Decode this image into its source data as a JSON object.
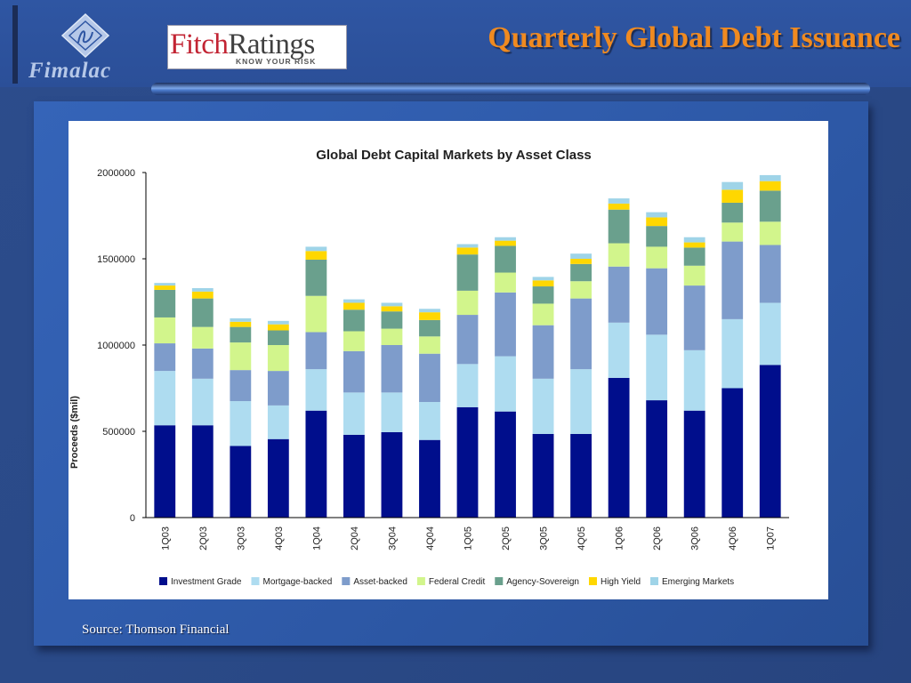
{
  "header": {
    "org_logo_text": "Fimalac",
    "fitch_logo": {
      "word1": "Fitch",
      "word2": "Ratings",
      "tagline": "KNOW YOUR RISK"
    },
    "title": "Quarterly Global Debt Issuance"
  },
  "footer": {
    "source": "Source: Thomson Financial"
  },
  "colors": {
    "title": "#f08a20",
    "investment_grade": "#000e8c",
    "mortgage_backed": "#aedcf0",
    "asset_backed": "#7e9ccb",
    "federal_credit": "#d2f58c",
    "agency_sovereign": "#6aa08d",
    "high_yield": "#ffd700",
    "emerging_markets": "#9fd4e8"
  },
  "chart_data": {
    "type": "bar",
    "stacked": true,
    "title": "Global Debt Capital Markets by Asset Class",
    "xlabel": "",
    "ylabel": "Proceeds ($mil)",
    "ylim": [
      0,
      2000000
    ],
    "yticks": [
      0,
      500000,
      1000000,
      1500000,
      2000000
    ],
    "ytick_labels": [
      "0",
      "500000",
      "1000000",
      "1500000",
      "2000000"
    ],
    "grid": false,
    "legend_position": "bottom",
    "categories": [
      "1Q03",
      "2Q03",
      "3Q03",
      "4Q03",
      "1Q04",
      "2Q04",
      "3Q04",
      "4Q04",
      "1Q05",
      "2Q05",
      "3Q05",
      "4Q05",
      "1Q06",
      "2Q06",
      "3Q06",
      "4Q06",
      "1Q07"
    ],
    "series": [
      {
        "name": "Investment Grade",
        "color": "#000e8c",
        "values": [
          535000,
          535000,
          415000,
          455000,
          620000,
          480000,
          495000,
          450000,
          640000,
          615000,
          485000,
          485000,
          810000,
          680000,
          620000,
          750000,
          885000
        ]
      },
      {
        "name": "Mortgage-backed",
        "color": "#aedcf0",
        "values": [
          315000,
          270000,
          260000,
          195000,
          240000,
          245000,
          230000,
          220000,
          250000,
          320000,
          320000,
          375000,
          320000,
          380000,
          350000,
          400000,
          360000
        ]
      },
      {
        "name": "Asset-backed",
        "color": "#7e9ccb",
        "values": [
          160000,
          175000,
          180000,
          200000,
          215000,
          240000,
          275000,
          280000,
          285000,
          370000,
          310000,
          410000,
          325000,
          385000,
          375000,
          450000,
          335000
        ]
      },
      {
        "name": "Federal Credit",
        "color": "#d2f58c",
        "values": [
          150000,
          125000,
          160000,
          150000,
          210000,
          115000,
          95000,
          100000,
          140000,
          115000,
          125000,
          100000,
          135000,
          125000,
          115000,
          110000,
          135000
        ]
      },
      {
        "name": "Agency-Sovereign",
        "color": "#6aa08d",
        "values": [
          160000,
          165000,
          90000,
          85000,
          210000,
          125000,
          100000,
          95000,
          210000,
          155000,
          100000,
          100000,
          195000,
          120000,
          105000,
          115000,
          180000
        ]
      },
      {
        "name": "High Yield",
        "color": "#ffd700",
        "values": [
          25000,
          40000,
          30000,
          35000,
          50000,
          40000,
          30000,
          45000,
          40000,
          30000,
          35000,
          30000,
          35000,
          50000,
          30000,
          75000,
          55000
        ]
      },
      {
        "name": "Emerging Markets",
        "color": "#9fd4e8",
        "values": [
          15000,
          20000,
          20000,
          20000,
          25000,
          20000,
          20000,
          20000,
          20000,
          20000,
          20000,
          30000,
          30000,
          30000,
          30000,
          45000,
          35000
        ]
      }
    ]
  }
}
